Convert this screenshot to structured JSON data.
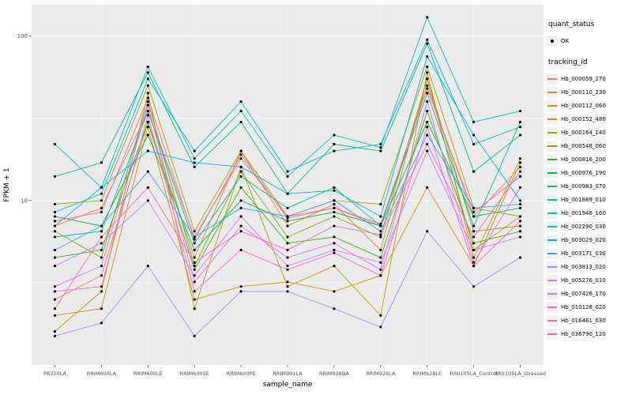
{
  "chart_data": {
    "type": "line",
    "title": "",
    "xlabel": "sample_name",
    "ylabel": "FPKM + 1",
    "y_scale": "log10",
    "ylim": [
      1.0,
      155
    ],
    "y_ticks": [
      10,
      100
    ],
    "y_tick_labels": [
      "10",
      "100"
    ],
    "y_minor_ticks": [
      3.162,
      31.62
    ],
    "grid": true,
    "panel_bg": "#EBEBEB",
    "grid_color": "#FFFFFF",
    "point_color": "#000000",
    "legend_position": "right",
    "categories": [
      "PB350LA",
      "RRIM600LA",
      "RRIM600LE",
      "RRIM600SE",
      "RRIM600PE",
      "RRIM901LA",
      "RRIM928BA",
      "RRIM928LA",
      "RRIM928LE",
      "RRII105LA_Control",
      "RRII105LA_Stressed"
    ],
    "series": [
      {
        "name": "Hb_000059_270",
        "color": "#F8766D",
        "values": [
          7,
          9,
          35,
          6,
          18,
          8,
          9,
          7,
          50,
          8,
          16
        ]
      },
      {
        "name": "Hb_000110_230",
        "color": "#EA8331",
        "values": [
          2.5,
          3.5,
          30,
          4.5,
          20,
          7,
          9.5,
          5,
          55,
          5,
          8
        ]
      },
      {
        "name": "Hb_000112_060",
        "color": "#D89000",
        "values": [
          2,
          2.2,
          28,
          2.5,
          3,
          3.2,
          2.8,
          3.5,
          12,
          4,
          17
        ]
      },
      {
        "name": "Hb_000152_480",
        "color": "#C09B00",
        "values": [
          1.6,
          2.8,
          45,
          2.2,
          16,
          3,
          4,
          2,
          60,
          4.5,
          18
        ]
      },
      {
        "name": "Hb_000164_140",
        "color": "#A3A500",
        "values": [
          9.5,
          10,
          50,
          6.5,
          20,
          8,
          10,
          9.5,
          65,
          9,
          8
        ]
      },
      {
        "name": "Hb_000548_060",
        "color": "#7CAE00",
        "values": [
          6.5,
          4.5,
          40,
          4,
          15,
          6,
          8,
          6,
          55,
          6.5,
          7
        ]
      },
      {
        "name": "Hb_000816_200",
        "color": "#39B600",
        "values": [
          4.5,
          5,
          30,
          3.8,
          12,
          5.5,
          6,
          4.5,
          35,
          5.5,
          6.5
        ]
      },
      {
        "name": "Hb_000976_190",
        "color": "#00BB4E",
        "values": [
          8,
          7,
          25,
          5,
          10,
          7.5,
          8.5,
          7,
          30,
          8,
          9
        ]
      },
      {
        "name": "Hb_000983_070",
        "color": "#00BF7D",
        "values": [
          14,
          17,
          60,
          16,
          30,
          11,
          22,
          20,
          90,
          15,
          25
        ]
      },
      {
        "name": "Hb_001889_010",
        "color": "#00C1A3",
        "values": [
          6,
          6.5,
          35,
          5.5,
          14,
          9,
          12,
          7,
          45,
          7,
          30
        ]
      },
      {
        "name": "Hb_001946_160",
        "color": "#00BFC4",
        "values": [
          22,
          12,
          65,
          18,
          35,
          14,
          25,
          21,
          130,
          30,
          35
        ]
      },
      {
        "name": "Hb_002290_030",
        "color": "#00BAE0",
        "values": [
          8.5,
          11,
          55,
          20,
          40,
          15,
          20,
          22,
          95,
          22,
          28
        ]
      },
      {
        "name": "Hb_003029_020",
        "color": "#00B0F6",
        "values": [
          7,
          12,
          20,
          17,
          16,
          11,
          11.5,
          8,
          75,
          25,
          10
        ]
      },
      {
        "name": "Hb_003171_030",
        "color": "#35A2FF",
        "values": [
          5,
          7,
          15,
          6,
          9,
          8,
          10,
          6.5,
          25,
          9,
          9.5
        ]
      },
      {
        "name": "Hb_003813_020",
        "color": "#9590FF",
        "values": [
          1.5,
          1.8,
          4,
          1.5,
          2.8,
          2.8,
          2.2,
          1.7,
          6.5,
          3,
          4.5
        ]
      },
      {
        "name": "Hb_005276_010",
        "color": "#C77CFF",
        "values": [
          4,
          5.5,
          10,
          3.5,
          8,
          4,
          5,
          4.2,
          20,
          5,
          6
        ]
      },
      {
        "name": "Hb_007426_170",
        "color": "#E76BF3",
        "values": [
          3,
          4,
          38,
          3.2,
          7,
          4.5,
          5.5,
          3.8,
          40,
          4.2,
          12
        ]
      },
      {
        "name": "Hb_010128_020",
        "color": "#FA62DB",
        "values": [
          2.8,
          3,
          33,
          2.8,
          5,
          3.8,
          4.8,
          3.5,
          28,
          4,
          7.5
        ]
      },
      {
        "name": "Hb_016461_030",
        "color": "#FF62BC",
        "values": [
          2.2,
          6,
          12,
          4.2,
          6.5,
          5,
          7,
          6.2,
          22,
          6,
          15
        ]
      },
      {
        "name": "Hb_036790_120",
        "color": "#FF6A98",
        "values": [
          7.5,
          8.5,
          42,
          5.8,
          19,
          7.8,
          9,
          7.2,
          48,
          8.5,
          14
        ]
      }
    ]
  },
  "legend": {
    "quant_status_title": "quant_status",
    "quant_status_items": [
      {
        "label": "OK",
        "symbol": "point"
      }
    ],
    "tracking_id_title": "tracking_id",
    "key_bg": "#F2F2F2"
  },
  "axis": {
    "tick_label_color": "#4D4D4D",
    "title_color": "#000000"
  }
}
